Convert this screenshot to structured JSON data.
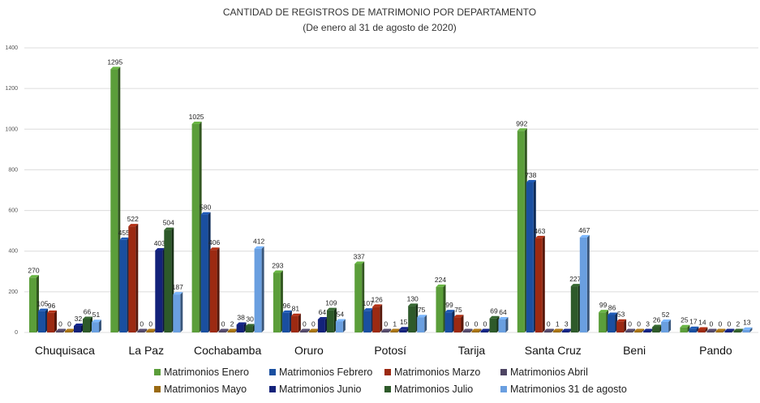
{
  "chart_data": {
    "type": "bar",
    "title": "CANTIDAD DE REGISTROS DE MATRIMONIO POR DEPARTAMENTO",
    "subtitle": "(De enero al  31 de agosto de 2020)",
    "xlabel": "",
    "ylabel": "",
    "ylim": [
      0,
      1400
    ],
    "yticks": [
      0,
      200,
      400,
      600,
      800,
      1000,
      1200,
      1400
    ],
    "grid": true,
    "legend_position": "bottom",
    "categories": [
      "Chuquisaca",
      "La Paz",
      "Cochabamba",
      "Oruro",
      "Potosí",
      "Tarija",
      "Santa Cruz",
      "Beni",
      "Pando"
    ],
    "series": [
      {
        "name": "Matrimonios Enero",
        "color": "#5b9e3a",
        "values": [
          270,
          1295,
          1025,
          293,
          337,
          224,
          992,
          99,
          25
        ]
      },
      {
        "name": "Matrimonios Febrero",
        "color": "#1a4fa0",
        "values": [
          105,
          455,
          580,
          96,
          107,
          99,
          738,
          86,
          17
        ]
      },
      {
        "name": "Matrimonios Marzo",
        "color": "#9c2a12",
        "values": [
          96,
          522,
          406,
          81,
          126,
          75,
          463,
          53,
          14
        ]
      },
      {
        "name": "Matrimonios Abril",
        "color": "#4e4563",
        "values": [
          0,
          0,
          0,
          0,
          0,
          0,
          0,
          0,
          0
        ]
      },
      {
        "name": "Matrimonios Mayo",
        "color": "#9a6a12",
        "values": [
          0,
          0,
          2,
          0,
          1,
          0,
          1,
          0,
          0
        ]
      },
      {
        "name": "Matrimonios Junio",
        "color": "#13227a",
        "values": [
          32,
          403,
          38,
          64,
          15,
          0,
          3,
          3,
          0
        ]
      },
      {
        "name": "Matrimonios Julio",
        "color": "#2e5a2a",
        "values": [
          66,
          504,
          30,
          109,
          130,
          69,
          227,
          26,
          2
        ]
      },
      {
        "name": "Matrimonios 31 de agosto",
        "color": "#6a9fe0",
        "values": [
          51,
          187,
          412,
          54,
          75,
          64,
          467,
          52,
          13
        ]
      }
    ]
  }
}
